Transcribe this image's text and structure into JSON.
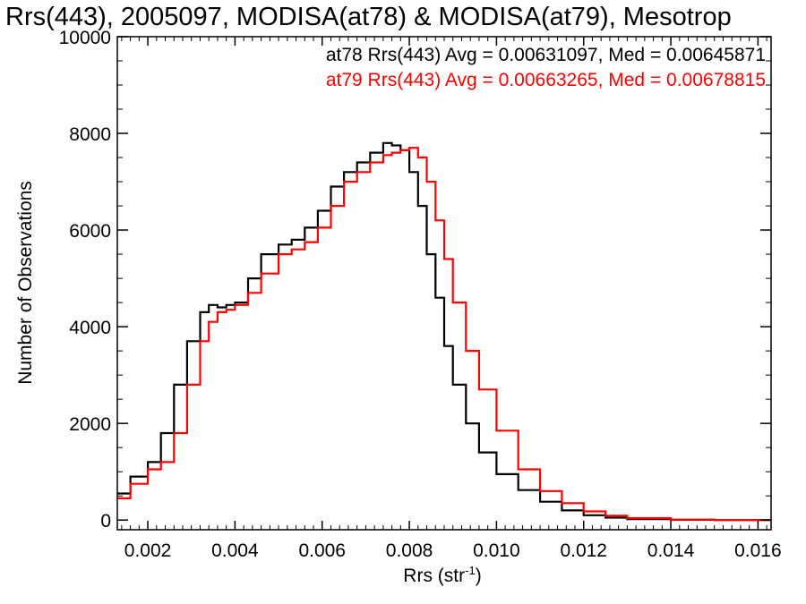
{
  "chart_data": {
    "type": "line",
    "title": "Rrs(443), 2005097, MODISA(at78) & MODISA(at79), Mesotrop",
    "xlabel_main": "Rrs (str",
    "xlabel_sup": "-1",
    "xlabel_close": ")",
    "ylabel": "Number of Observations",
    "xlim": [
      0.0013,
      0.0163
    ],
    "ylim": [
      -200,
      10000
    ],
    "x_ticks": [
      0.002,
      0.004,
      0.006,
      0.008,
      0.01,
      0.012,
      0.014,
      0.016
    ],
    "x_tick_labels": [
      "0.002",
      "0.004",
      "0.006",
      "0.008",
      "0.010",
      "0.012",
      "0.014",
      "0.016"
    ],
    "y_ticks": [
      0,
      2000,
      4000,
      6000,
      8000,
      10000
    ],
    "y_tick_labels": [
      "0",
      "2000",
      "4000",
      "6000",
      "8000",
      "10000"
    ],
    "grid": false,
    "line_style": "step",
    "annotations": [
      {
        "text": "at78 Rrs(443) Avg = 0.00631097, Med = 0.00645871",
        "color": "#000000"
      },
      {
        "text": "at79 Rrs(443) Avg = 0.00663265, Med = 0.00678815",
        "color": "#ff0000"
      }
    ],
    "series": [
      {
        "color": "#000000",
        "x": [
          0.0013,
          0.0016,
          0.002,
          0.0023,
          0.0026,
          0.0029,
          0.0032,
          0.0034,
          0.0036,
          0.0038,
          0.004,
          0.0043,
          0.0046,
          0.005,
          0.0053,
          0.0056,
          0.0059,
          0.0062,
          0.0065,
          0.0068,
          0.0071,
          0.0074,
          0.0076,
          0.0078,
          0.008,
          0.0082,
          0.0084,
          0.0086,
          0.0088,
          0.009,
          0.0093,
          0.0096,
          0.01,
          0.0105,
          0.011,
          0.0115,
          0.012,
          0.0125,
          0.013,
          0.014,
          0.015,
          0.0163
        ],
        "y": [
          550,
          900,
          1200,
          1800,
          2800,
          3700,
          4300,
          4450,
          4400,
          4450,
          4500,
          5000,
          5500,
          5700,
          5800,
          6050,
          6400,
          6900,
          7200,
          7400,
          7600,
          7800,
          7750,
          7650,
          7200,
          6500,
          5500,
          4600,
          3600,
          2800,
          2000,
          1400,
          950,
          620,
          380,
          200,
          100,
          50,
          20,
          5,
          0,
          0
        ]
      },
      {
        "color": "#ff0000",
        "x": [
          0.0013,
          0.0016,
          0.002,
          0.0023,
          0.0026,
          0.0029,
          0.0032,
          0.0034,
          0.0036,
          0.0038,
          0.004,
          0.0043,
          0.0046,
          0.005,
          0.0053,
          0.0056,
          0.0059,
          0.0062,
          0.0065,
          0.0068,
          0.0071,
          0.0074,
          0.0076,
          0.0078,
          0.008,
          0.0082,
          0.0084,
          0.0086,
          0.0088,
          0.009,
          0.0093,
          0.0096,
          0.01,
          0.0105,
          0.011,
          0.0115,
          0.012,
          0.0125,
          0.013,
          0.014,
          0.015,
          0.0163
        ],
        "y": [
          450,
          750,
          1050,
          1200,
          1800,
          2800,
          3700,
          4100,
          4300,
          4350,
          4450,
          4700,
          5100,
          5500,
          5600,
          5750,
          6050,
          6500,
          7000,
          7200,
          7400,
          7550,
          7600,
          7650,
          7700,
          7500,
          7000,
          6200,
          5400,
          4500,
          3500,
          2700,
          1850,
          1050,
          600,
          350,
          180,
          90,
          40,
          10,
          0,
          0
        ]
      }
    ]
  }
}
